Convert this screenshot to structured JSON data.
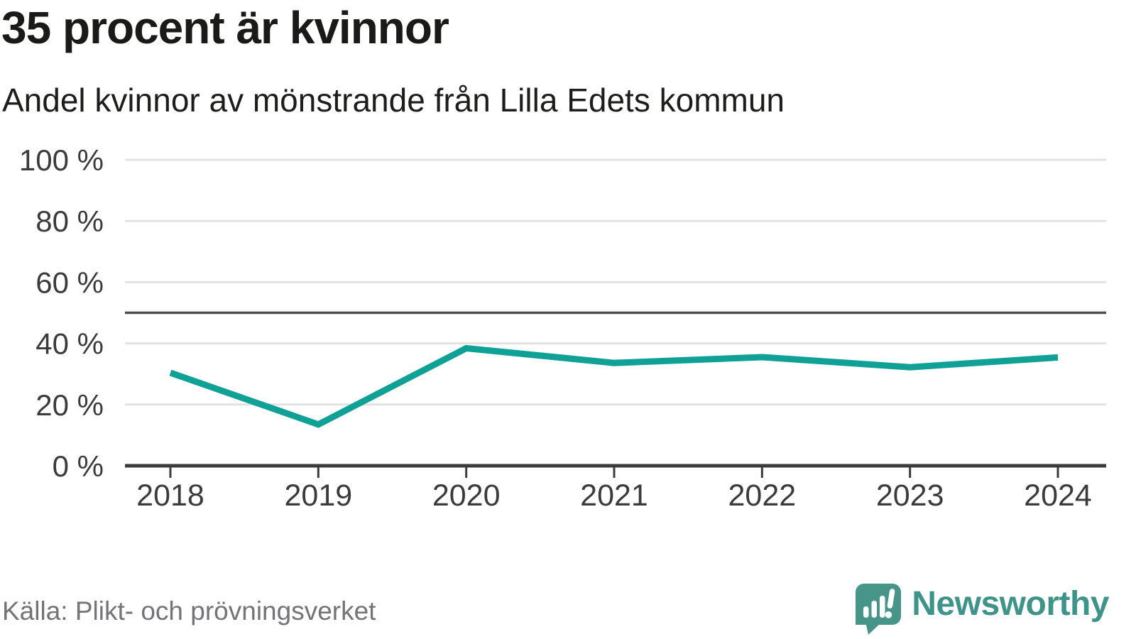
{
  "chart_data": {
    "type": "line",
    "title": "35 procent är kvinnor",
    "subtitle": "Andel kvinnor av mönstrande från Lilla Edets kommun",
    "categories": [
      "2018",
      "2019",
      "2020",
      "2021",
      "2022",
      "2023",
      "2024"
    ],
    "series": [
      {
        "name": "Andel kvinnor",
        "values": [
          30.4,
          13.5,
          38.4,
          33.6,
          35.5,
          32.2,
          35.4
        ],
        "color": "#0fa195"
      }
    ],
    "unit": "%",
    "xlabel": "",
    "ylabel": "",
    "ylim": [
      0,
      100
    ],
    "yticks": [
      {
        "value": 0,
        "label": "0 %"
      },
      {
        "value": 20,
        "label": "20 %"
      },
      {
        "value": 40,
        "label": "40 %"
      },
      {
        "value": 60,
        "label": "60 %"
      },
      {
        "value": 80,
        "label": "80 %"
      },
      {
        "value": 100,
        "label": "100 %"
      }
    ],
    "reference_line": {
      "value": 50,
      "color": "#4e4e4e"
    },
    "grid": "horizontal",
    "gridline_color": "#e2e2e2",
    "axis_color": "#3b3b3b",
    "legend_position": "none"
  },
  "footer": {
    "source": "Källa: Plikt- och prövningsverket",
    "brand": {
      "name": "Newsworthy",
      "color": "#3f948a"
    }
  }
}
